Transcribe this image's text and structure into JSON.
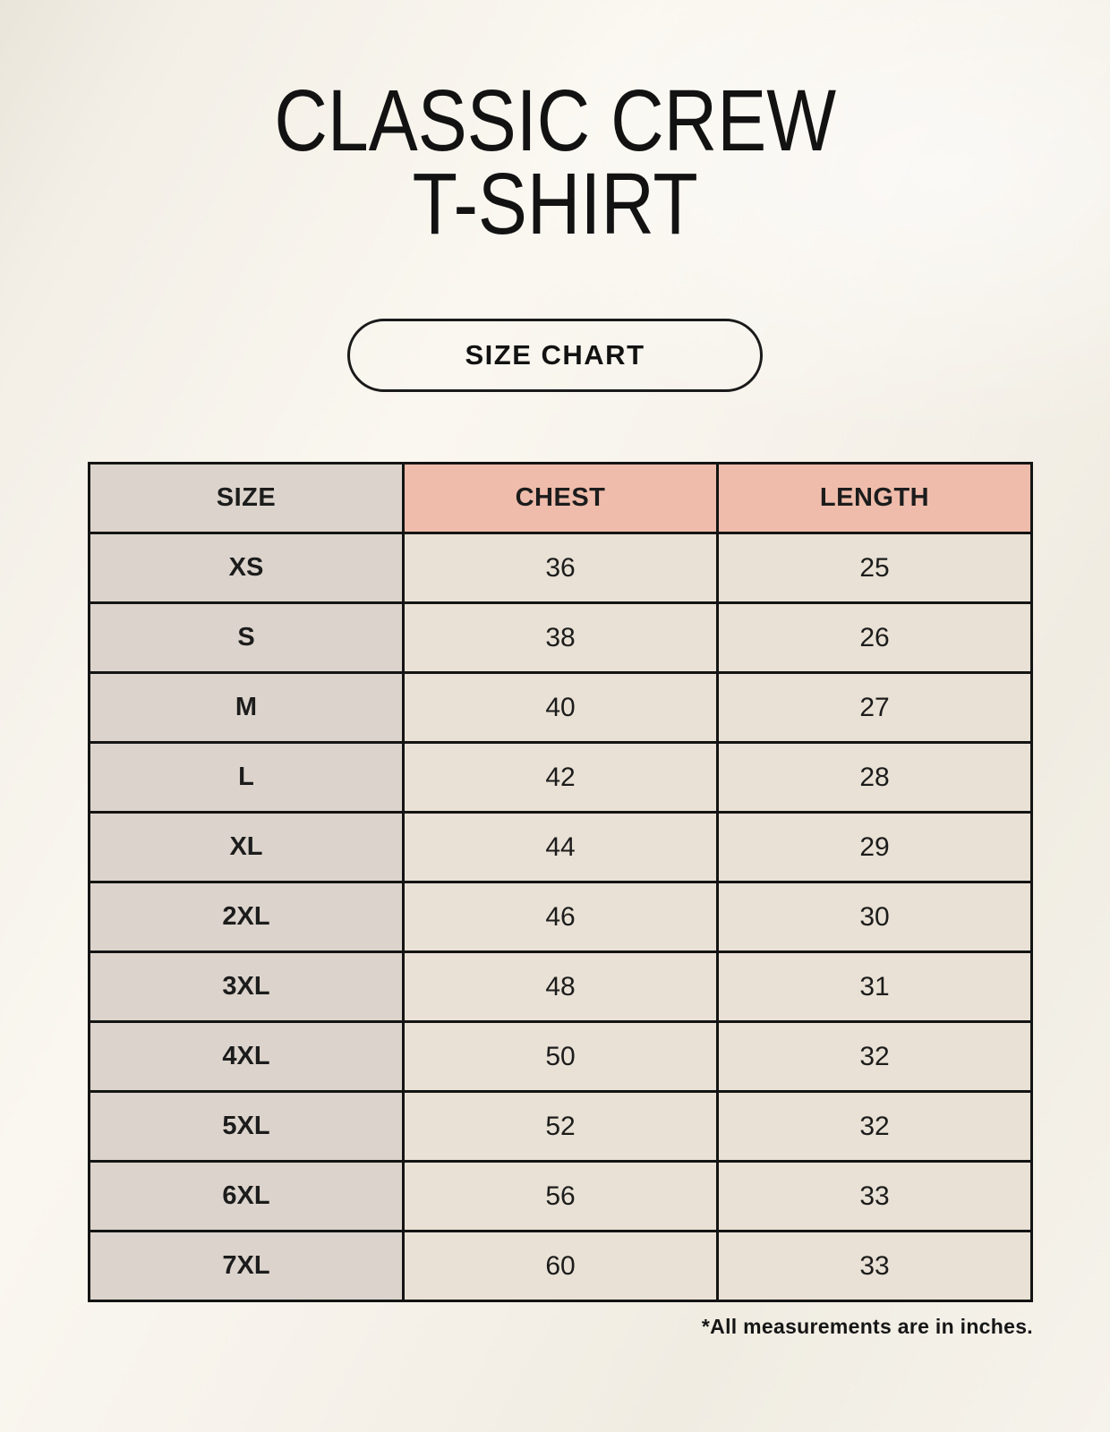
{
  "page": {
    "title_line1": "CLASSIC CREW",
    "title_line2": "T-SHIRT",
    "button_label": "SIZE CHART",
    "footnote": "*All measurements are in inches."
  },
  "table": {
    "headers": [
      "SIZE",
      "CHEST",
      "LENGTH"
    ],
    "rows": [
      {
        "size": "XS",
        "chest": "36",
        "length": "25"
      },
      {
        "size": "S",
        "chest": "38",
        "length": "26"
      },
      {
        "size": "M",
        "chest": "40",
        "length": "27"
      },
      {
        "size": "L",
        "chest": "42",
        "length": "28"
      },
      {
        "size": "XL",
        "chest": "44",
        "length": "29"
      },
      {
        "size": "2XL",
        "chest": "46",
        "length": "30"
      },
      {
        "size": "3XL",
        "chest": "48",
        "length": "31"
      },
      {
        "size": "4XL",
        "chest": "50",
        "length": "32"
      },
      {
        "size": "5XL",
        "chest": "52",
        "length": "32"
      },
      {
        "size": "6XL",
        "chest": "56",
        "length": "33"
      },
      {
        "size": "7XL",
        "chest": "60",
        "length": "33"
      }
    ]
  },
  "colors": {
    "background": "#f6f2ea",
    "header_pink": "#efbcab",
    "size_column_taupe": "#dcd4cc",
    "cell_cream": "#e9e1d5",
    "border_black": "#141414",
    "text_dark": "#1c1c1c"
  }
}
